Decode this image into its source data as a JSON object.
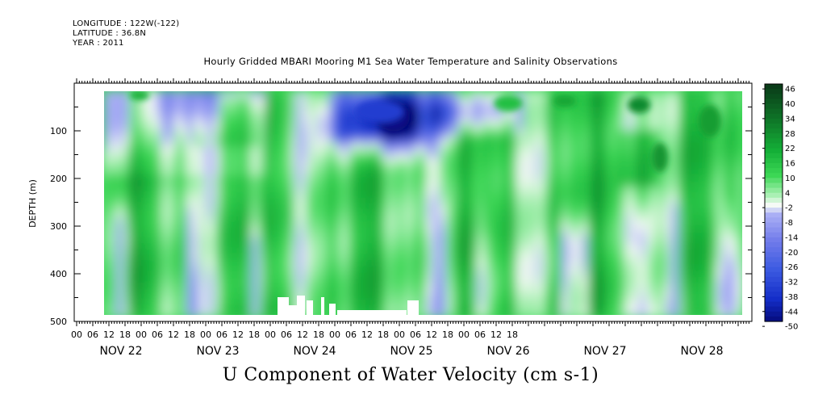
{
  "header": {
    "longitude": "LONGITUDE : 122W(-122)",
    "latitude": "LATITUDE : 36.8N",
    "year": "YEAR : 2011",
    "title": "Hourly Gridded MBARI Mooring M1 Sea Water Temperature and Salinity Observations"
  },
  "footer": {
    "variable": "U Component of Water Velocity (cm s-1)"
  },
  "chart_data": {
    "type": "heatmap",
    "title": "Hourly Gridded MBARI Mooring M1 Sea Water Temperature and Salinity Observations",
    "xlabel": "",
    "ylabel": "DEPTH (m)",
    "colorbar_label": "U Component of Water Velocity (cm s-1)",
    "x_hour_ticks": [
      "00",
      "06",
      "12",
      "18",
      "00",
      "06",
      "12",
      "18",
      "00",
      "06",
      "12",
      "18",
      "00",
      "06",
      "12",
      "18",
      "00",
      "06",
      "12",
      "18",
      "00",
      "06",
      "12",
      "18",
      "00",
      "06",
      "12",
      "18"
    ],
    "x_day_labels": [
      "NOV 22",
      "NOV 23",
      "NOV 24",
      "NOV 25",
      "NOV 26",
      "NOV 27",
      "NOV 28"
    ],
    "y_ticks": [
      100,
      200,
      300,
      400,
      500
    ],
    "ylim": [
      500,
      0
    ],
    "colorbar_levels": [
      46,
      40,
      34,
      28,
      22,
      16,
      10,
      4,
      -2,
      -8,
      -14,
      -20,
      -26,
      -32,
      -38,
      -44,
      -50
    ],
    "colormap": "blue (negative) – white (zero) – green (positive)",
    "colors": {
      "max": "#0b3d17",
      "positive": "#22cc44",
      "zero": "#ffffff",
      "negative": "#8888e6",
      "min": "#000066"
    },
    "data_extent": {
      "time_start": "NOV 22 06:00",
      "time_end": "NOV 28 ~21:00",
      "depth_min_m": 20,
      "depth_max_m": 485
    },
    "features": [
      {
        "period": "NOV 24 12:00 – NOV 25 09:00",
        "depth_m": "20–100",
        "u_cm_s": -35,
        "note": "strongest westward flow, dark blue core near NOV 25 06:00 at ~75 m"
      },
      {
        "period": "NOV 22 06:00 – NOV 23 12:00",
        "depth_m": "20–200",
        "u_cm_s": -10,
        "note": "weak negative (blue) flow near surface"
      },
      {
        "period": "NOV 22 – NOV 28",
        "depth_m": "200–485",
        "u_cm_s": 12,
        "note": "predominantly positive (green) flow at depth"
      },
      {
        "period": "NOV 25 06:00 – NOV 26 00:00",
        "depth_m": "20–60",
        "u_cm_s": -20,
        "note": "blue band near surface"
      },
      {
        "period": "NOV 27 – NOV 28",
        "depth_m": "200–480",
        "u_cm_s": -8,
        "note": "alternating vertical blue/green bands"
      }
    ]
  }
}
